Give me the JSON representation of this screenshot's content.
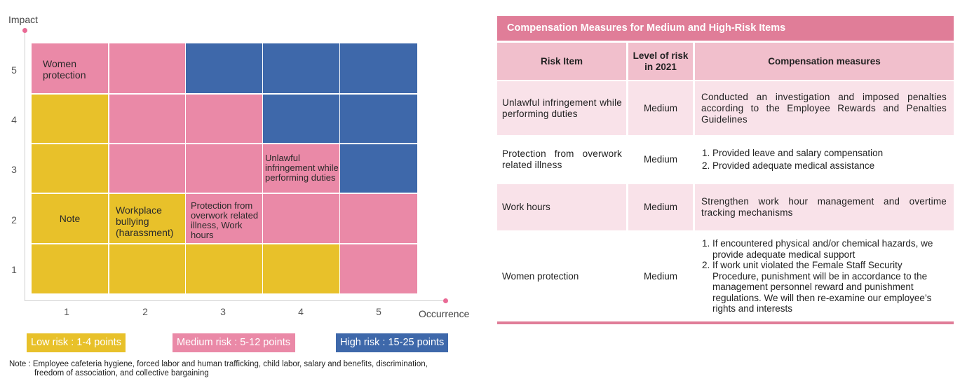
{
  "matrix": {
    "y_axis_title": "Impact",
    "x_axis_title": "Occurrence",
    "y_ticks": [
      "5",
      "4",
      "3",
      "2",
      "1"
    ],
    "x_ticks": [
      "1",
      "2",
      "3",
      "4",
      "5"
    ],
    "cells": {
      "women_protection": "Women protection",
      "unlawful": "Unlawful infringement while performing duties",
      "note": "Note",
      "bullying": "Workplace bullying (harassment)",
      "overwork": "Protection from overwork related illness, Work hours"
    },
    "colors": {
      "low": "#e8c12a",
      "medium": "#ea89a7",
      "high": "#3e68aa"
    },
    "levels": [
      [
        "medium",
        "medium",
        "high",
        "high",
        "high"
      ],
      [
        "low",
        "medium",
        "medium",
        "high",
        "high"
      ],
      [
        "low",
        "medium",
        "medium",
        "medium",
        "high"
      ],
      [
        "low",
        "low",
        "medium",
        "medium",
        "medium"
      ],
      [
        "low",
        "low",
        "low",
        "low",
        "medium"
      ]
    ]
  },
  "legend": {
    "low": "Low risk : 1-4 points",
    "medium": "Medium risk : 5-12 points",
    "high": "High risk : 15-25 points"
  },
  "note": {
    "line1": "Note : Employee cafeteria hygiene, forced labor and human trafficking, child labor, salary and benefits, discrimination,",
    "line2": "freedom of association, and collective bargaining"
  },
  "table": {
    "title": "Compensation Measures for Medium and High-Risk Items",
    "headers": {
      "item": "Risk Item",
      "level": "Level of risk in 2021",
      "measures": "Compensation measures"
    },
    "rows": [
      {
        "item": "Unlawful infringement while performing duties",
        "level": "Medium",
        "measure_text": "Conducted an investigation and imposed penalties according to the Employee Rewards and Penalties Guidelines"
      },
      {
        "item": "Protection from overwork related illness",
        "level": "Medium",
        "measure_list": [
          "Provided leave and salary compensation",
          "Provided adequate medical assistance"
        ]
      },
      {
        "item": "Work hours",
        "level": "Medium",
        "measure_text": "Strengthen work hour management and overtime tracking mechanisms"
      },
      {
        "item": "Women protection",
        "level": "Medium",
        "measure_list": [
          "If encountered physical and/or chemical hazards, we provide adequate medical support",
          "If work unit violated the Female Staff Security Procedure, punishment will be in accordance to the management personnel reward and punishment regulations. We will then re-examine our employee’s rights and interests"
        ]
      }
    ]
  }
}
